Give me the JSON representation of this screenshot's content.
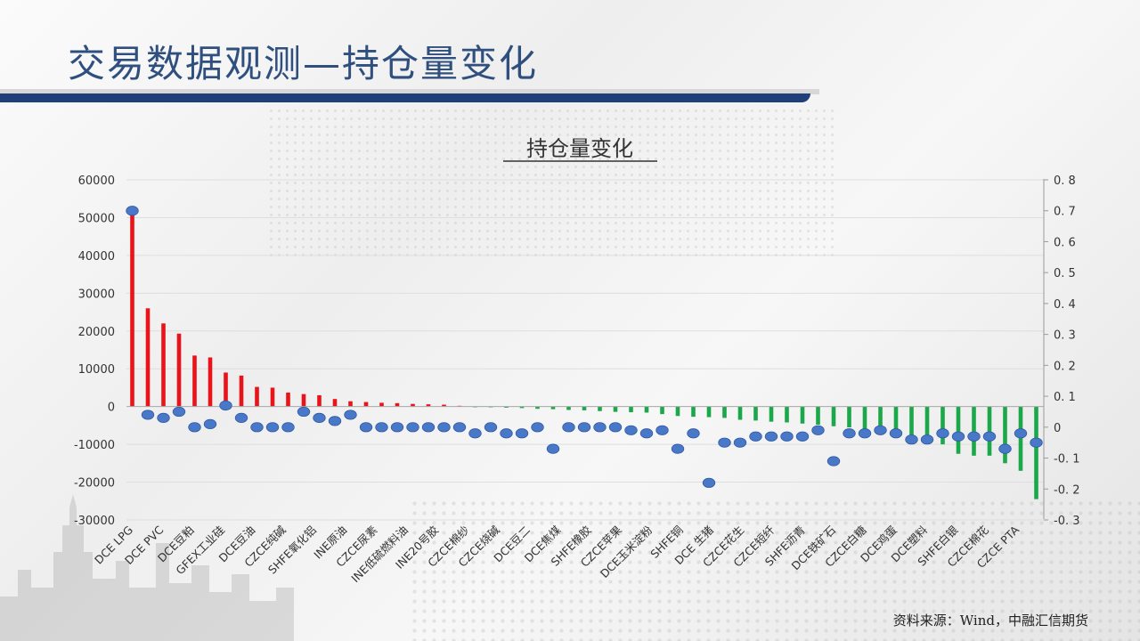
{
  "slide": {
    "title": "交易数据观测—持仓量变化",
    "source": "资料来源：Wind，中融汇信期货"
  },
  "colors": {
    "positive_bar": "#e8141a",
    "negative_bar": "#1aa84b",
    "marker": "#4a78c8",
    "title_text": "#2f4f7f",
    "rule": "#1f3f7a"
  },
  "chart_data": {
    "type": "bar",
    "title": "持仓量变化",
    "left_axis": {
      "ylim": [
        -30000,
        60000
      ],
      "ticks": [
        "60000",
        "50000",
        "40000",
        "30000",
        "20000",
        "10000",
        "0",
        "-10000",
        "-20000",
        "-30000"
      ]
    },
    "right_axis": {
      "ylim": [
        -0.3,
        0.8
      ],
      "ticks": [
        "0. 8",
        "0. 7",
        "0. 6",
        "0. 5",
        "0. 4",
        "0. 3",
        "0. 2",
        "0. 1",
        "0",
        "-0. 1",
        "-0. 2",
        "-0. 3"
      ]
    },
    "x_labels": [
      "DCE LPG",
      "DCE PVC",
      "DCE豆粕",
      "GFEX工业硅",
      "DCE豆油",
      "CZCE纯碱",
      "SHFE氧化铝",
      "INE原油",
      "CZCE尿素",
      "INE低硫燃料油",
      "INE20号胶",
      "CZCE棉纱",
      "CZCE烧碱",
      "DCE豆二",
      "DCE焦煤",
      "SHFE橡胶",
      "CZCE苹果",
      "DCE玉米淀粉",
      "SHFE铜",
      "DCE 生猪",
      "CZCE花生",
      "CZCE短纤",
      "SHFE沥青",
      "DCE铁矿石",
      "CZCE白糖",
      "DCE鸡蛋",
      "DCE塑料",
      "SHFE白银",
      "CZCE棉花",
      "CZCE PTA"
    ],
    "series": [
      {
        "axis": "left",
        "values": [
          51000,
          26000,
          22000,
          19300,
          13500,
          13000,
          9000,
          8200,
          5200,
          5000,
          3700,
          3300,
          3000,
          2000,
          1400,
          1200,
          1000,
          900,
          700,
          600,
          500,
          200,
          -100,
          -200,
          -300,
          -400,
          -600,
          -700,
          -900,
          -1000,
          -1200,
          -1400,
          -1500,
          -1600,
          -2000,
          -2500,
          -2700,
          -2800,
          -3000,
          -3500,
          -3700,
          -4000,
          -4200,
          -4500,
          -4800,
          -5200,
          -5500,
          -6000,
          -7000,
          -7500,
          -8000,
          -9000,
          -10000,
          -12500,
          -13000,
          -13000,
          -15000,
          -17000,
          -24500
        ]
      },
      {
        "axis": "right",
        "values": [
          0.7,
          0.04,
          0.03,
          0.05,
          0.0,
          0.01,
          0.07,
          0.03,
          0.0,
          0.0,
          0.0,
          0.05,
          0.03,
          0.02,
          0.04,
          0.0,
          0.0,
          0.0,
          0.0,
          0.0,
          0.0,
          0.0,
          -0.02,
          0.0,
          -0.02,
          -0.02,
          0.0,
          -0.07,
          0.0,
          0.0,
          0.0,
          0.0,
          -0.01,
          -0.02,
          -0.01,
          -0.07,
          -0.02,
          -0.18,
          -0.05,
          -0.05,
          -0.03,
          -0.03,
          -0.03,
          -0.03,
          -0.01,
          -0.11,
          -0.02,
          -0.02,
          -0.01,
          -0.02,
          -0.04,
          -0.04,
          -0.02,
          -0.03,
          -0.03,
          -0.03,
          -0.07,
          -0.02,
          -0.05
        ]
      }
    ]
  }
}
